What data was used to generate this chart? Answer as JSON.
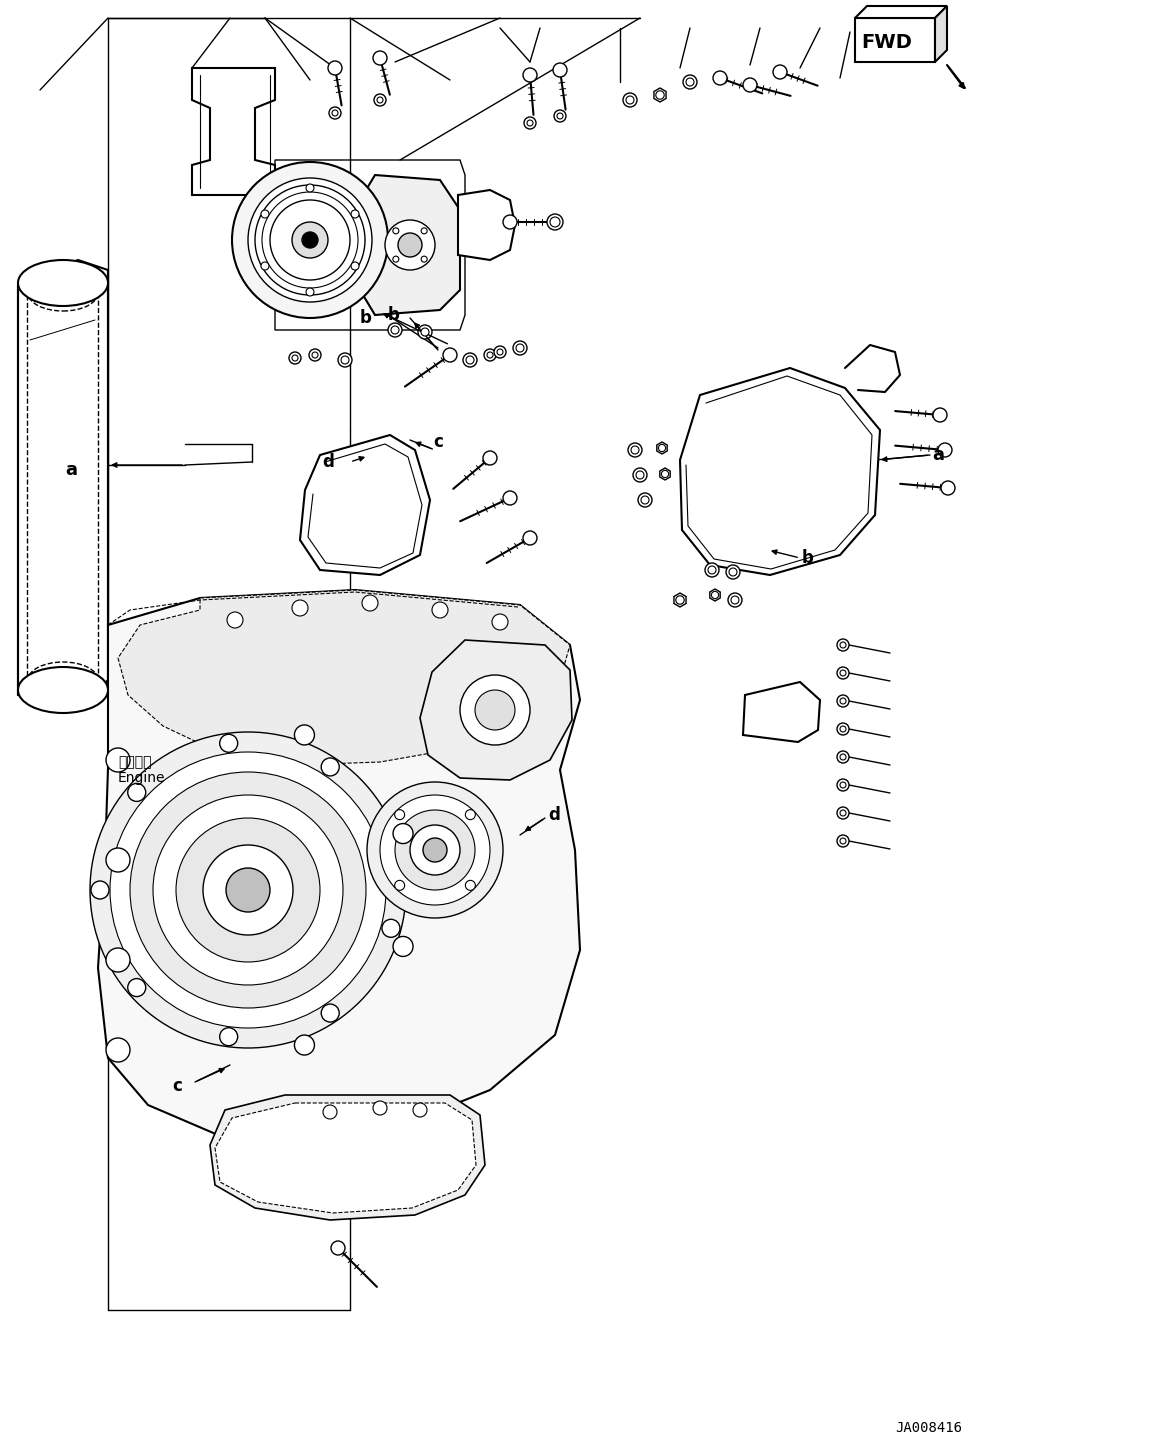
{
  "fig_width": 11.63,
  "fig_height": 14.49,
  "dpi": 100,
  "bg_color": "#ffffff",
  "lc": "#000000",
  "part_id": "JA008416",
  "engine_jp": "エンジン",
  "engine_en": "Engine"
}
